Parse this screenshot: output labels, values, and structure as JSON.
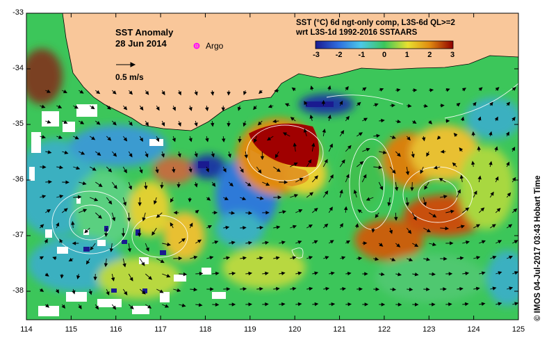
{
  "map": {
    "title": "SST Anomaly",
    "date": "28 Jun 2014",
    "argo_label": "Argo",
    "vector_scale_label": "0.5 m/s",
    "legend": {
      "title_line1": "SST (°C) 6d ngt-only comp, L3S-6d QL>=2",
      "title_line2": "wrt L3S-1d 1992-2016 SSTAARS",
      "ticks": [
        "-3",
        "-2",
        "-1",
        "0",
        "1",
        "2",
        "3"
      ]
    },
    "x_ticks": [
      "114",
      "115",
      "116",
      "117",
      "118",
      "119",
      "120",
      "121",
      "122",
      "123",
      "124",
      "125"
    ],
    "y_ticks": [
      "-33",
      "-34",
      "-35",
      "-36",
      "-37",
      "-38"
    ],
    "credit": "© IMOS 04-Jul-2017 03:43 Hobart Time",
    "colors": {
      "land": "#f9c79a",
      "anomaly_cold": "#1a1a90",
      "anomaly_neutral": "#3cc65a",
      "anomaly_warm": "#d08a10",
      "anomaly_hot": "#a00000",
      "argo_marker": "#ff00ff"
    }
  }
}
